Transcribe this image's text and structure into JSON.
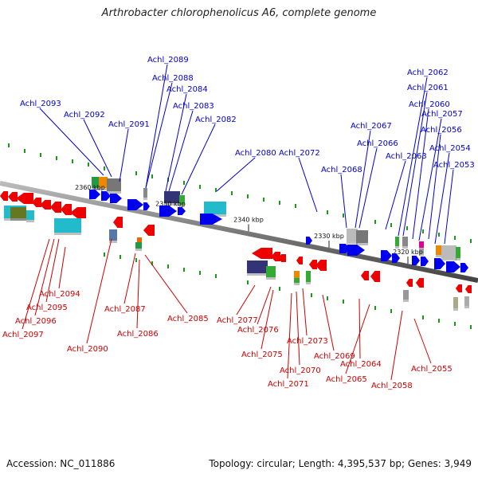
{
  "title": "Arthrobacter chlorophenolicus A6, complete genome",
  "footer": {
    "accession": "Accession: NC_011886",
    "summary": "Topology: circular; Length: 4,395,537 bp; Genes: 3,949"
  },
  "colors": {
    "top_strand_label": "#0000cc",
    "bottom_strand_label": "#cc0000",
    "forward_gene": "#0000ee",
    "reverse_gene": "#ee0000",
    "backbone": "#888888"
  },
  "scale_ticks": [
    "2360 kbp",
    "2350 kbp",
    "2340 kbp",
    "2330 kbp",
    "2320 kbp"
  ],
  "top_genes": [
    "Achl_2093",
    "Achl_2092",
    "Achl_2091",
    "Achl_2089",
    "Achl_2088",
    "Achl_2084",
    "Achl_2083",
    "Achl_2082",
    "Achl_2080",
    "Achl_2072",
    "Achl_2068",
    "Achl_2067",
    "Achl_2066",
    "Achl_2063",
    "Achl_2062",
    "Achl_2061",
    "Achl_2060",
    "Achl_2057",
    "Achl_2056",
    "Achl_2054",
    "Achl_2053"
  ],
  "bottom_genes": [
    "Achl_2094",
    "Achl_2095",
    "Achl_2096",
    "Achl_2097",
    "Achl_2090",
    "Achl_2087",
    "Achl_2086",
    "Achl_2085",
    "Achl_2077",
    "Achl_2076",
    "Achl_2075",
    "Achl_2073",
    "Achl_2070",
    "Achl_2071",
    "Achl_2069",
    "Achl_2064",
    "Achl_2065",
    "Achl_2058",
    "Achl_2055"
  ]
}
